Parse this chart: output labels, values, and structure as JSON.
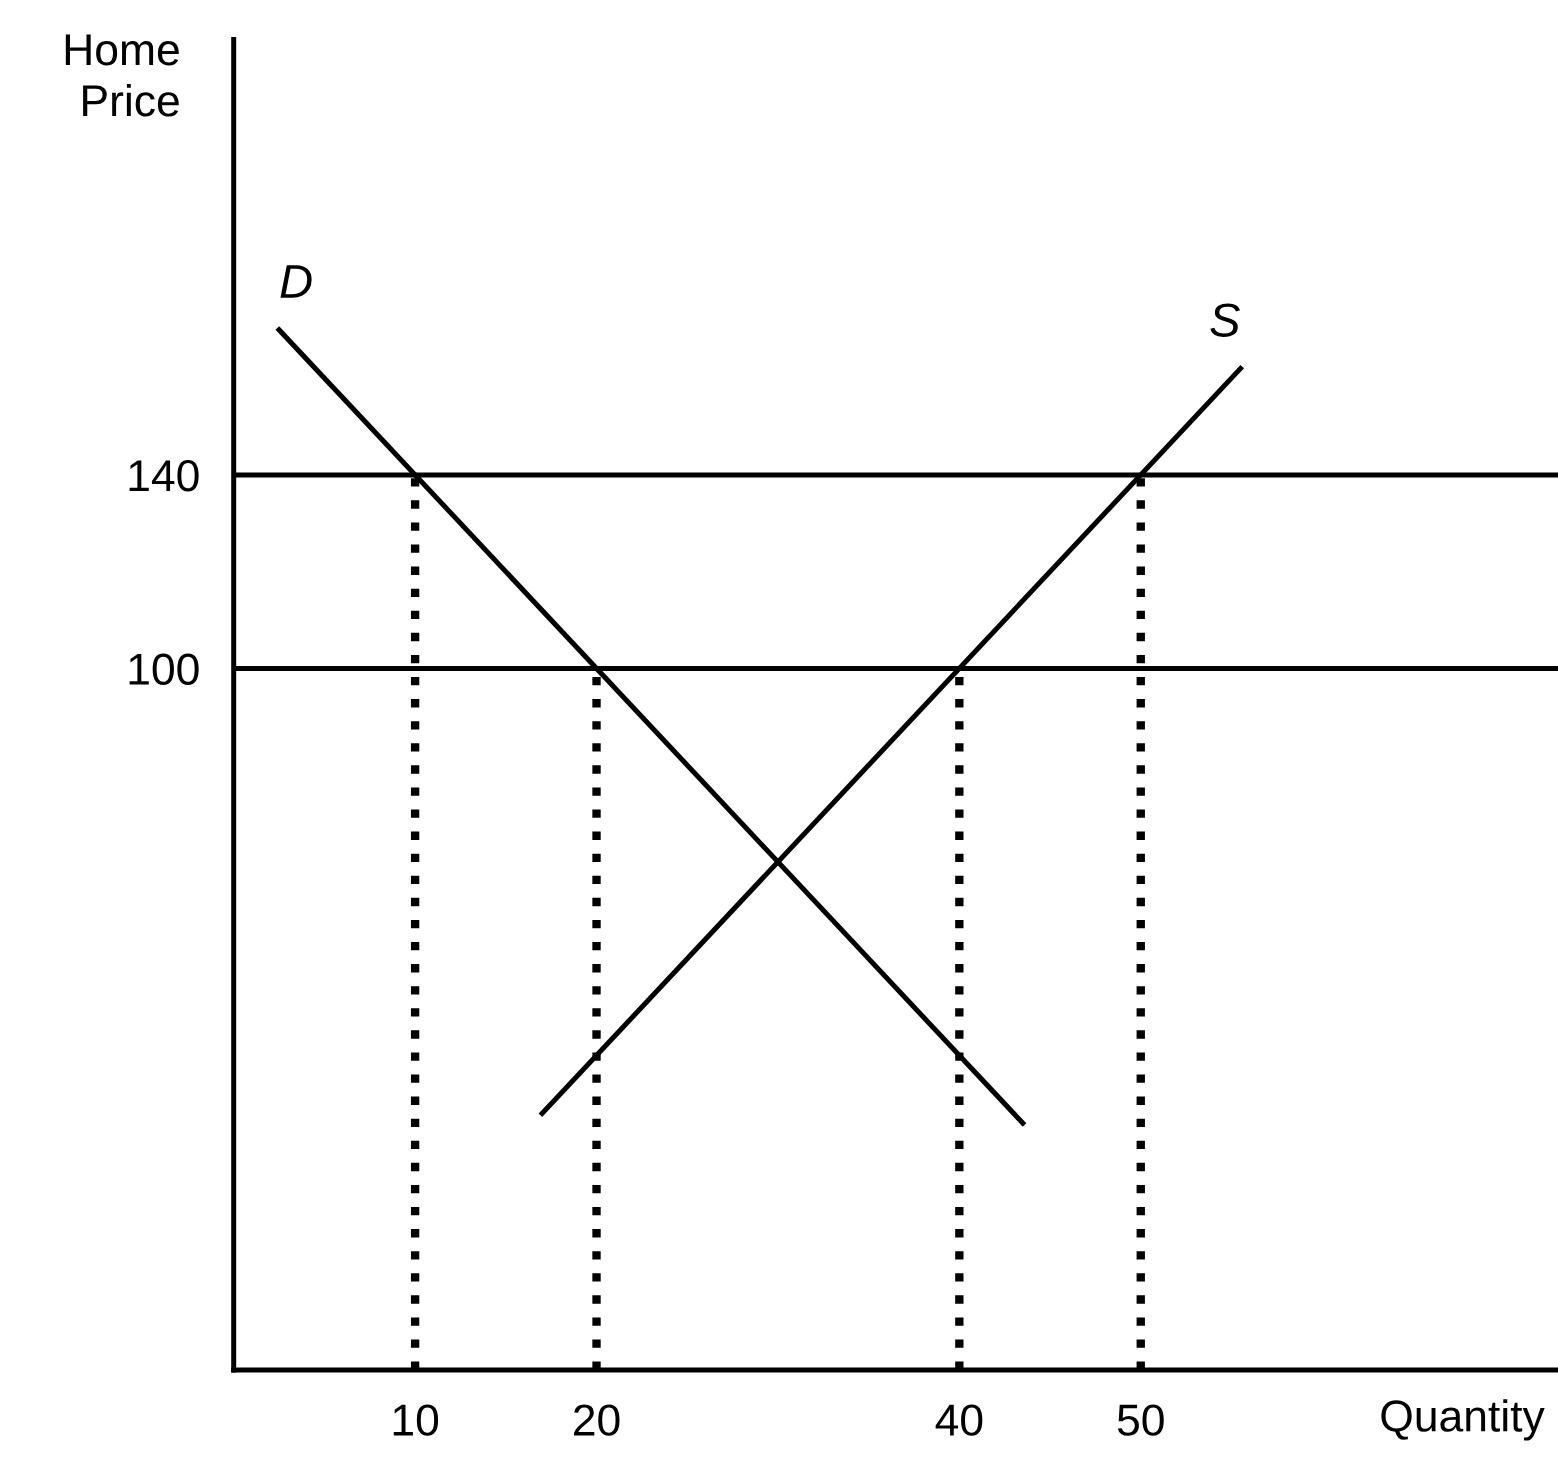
{
  "chart_data": {
    "type": "line",
    "xlabel": "Quantity",
    "ylabel": "Home\nPrice",
    "xlim": [
      0,
      73
    ],
    "ylim": [
      -45,
      230
    ],
    "xticks": [
      10,
      20,
      40,
      50
    ],
    "yticks": [
      100,
      140
    ],
    "grid": false,
    "legend": false,
    "marker": "none",
    "series": [
      {
        "name": "D",
        "color": "#000000",
        "x": [
          2.5,
          43.5
        ],
        "values": [
          170,
          6
        ],
        "line_style": "solid"
      },
      {
        "name": "S",
        "color": "#000000",
        "x": [
          17,
          55.5
        ],
        "values": [
          8,
          162
        ],
        "line_style": "solid"
      },
      {
        "color": "#000000",
        "x": [
          10,
          10
        ],
        "values": [
          -45,
          140
        ],
        "line_style": "dotted"
      },
      {
        "color": "#000000",
        "x": [
          20,
          20
        ],
        "values": [
          -45,
          100
        ],
        "line_style": "dotted"
      },
      {
        "color": "#000000",
        "x": [
          40,
          40
        ],
        "values": [
          -45,
          100
        ],
        "line_style": "dotted"
      },
      {
        "color": "#000000",
        "x": [
          50,
          50
        ],
        "values": [
          -45,
          140
        ],
        "line_style": "dotted"
      }
    ],
    "ref_lines": [
      {
        "axis": "y",
        "value": 140,
        "color": "#000000",
        "line_style": "solid"
      },
      {
        "axis": "y",
        "value": 100,
        "color": "#000000",
        "line_style": "solid"
      }
    ]
  }
}
